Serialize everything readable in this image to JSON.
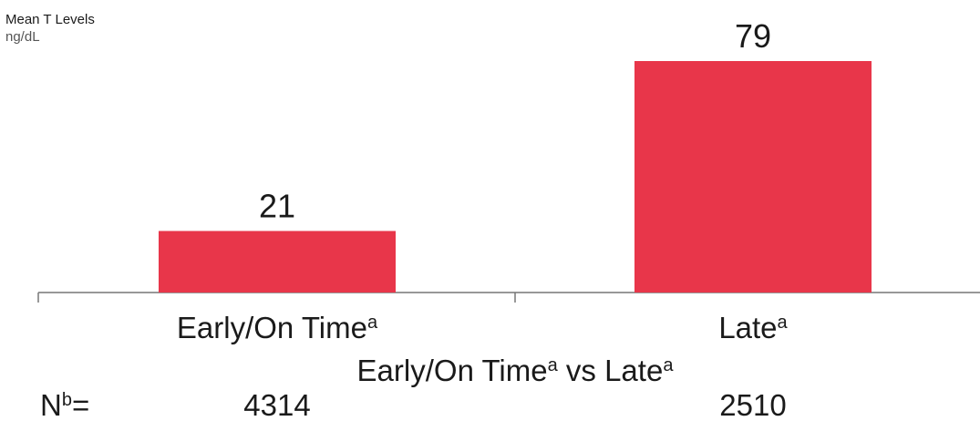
{
  "chart_data": {
    "type": "bar",
    "ylabel": "Mean T Levels",
    "yunit": "ng/dL",
    "categories": [
      {
        "label": "Early/On Time",
        "sup": "a"
      },
      {
        "label": "Late",
        "sup": "a"
      }
    ],
    "values": [
      21,
      79
    ],
    "data_labels": [
      "21",
      "79"
    ],
    "n_values": [
      "4314",
      "2510"
    ],
    "n_label": {
      "main": "N",
      "sup": "b",
      "suffix": "="
    },
    "xlabel": {
      "part1": "Early/On Time",
      "sup1": "a",
      "part2": " vs Late",
      "sup2": "a"
    },
    "bar_color": "#e8364a",
    "ylim": [
      0,
      79
    ],
    "grid": false
  }
}
